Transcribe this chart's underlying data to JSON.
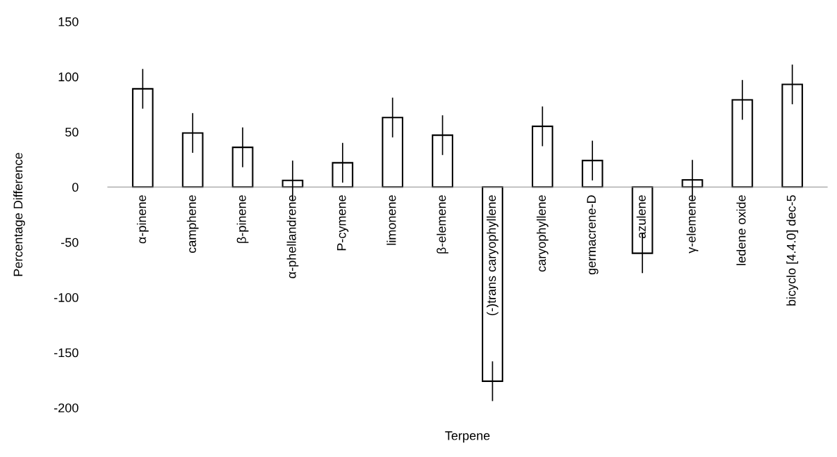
{
  "chart_data": {
    "type": "bar",
    "xlabel": "Terpene",
    "ylabel": "Percentage Difference",
    "categories": [
      "α-pinene",
      "camphene",
      "β-pinene",
      "α-phellandrene",
      "P-cymene",
      "limonene",
      "β-elemene",
      "(-)trans caryophyllene",
      "caryophyllene",
      "germacrene-D",
      "azulene",
      "γ-elemene",
      "ledene oxide",
      "bicyclo [4.4.0] dec-5"
    ],
    "values": [
      89,
      49,
      36,
      6,
      22,
      63,
      47,
      -176,
      55,
      24,
      -60,
      6.5,
      79,
      93
    ],
    "errors": [
      18,
      18,
      18,
      18,
      18,
      18,
      18,
      18,
      18,
      18,
      18,
      18,
      18,
      18
    ],
    "color": "#ffffff",
    "ylim": [
      -200,
      150
    ],
    "yticks": [
      -200,
      -150,
      -100,
      -50,
      0,
      50,
      100,
      150
    ],
    "grid": false,
    "legend": false
  }
}
